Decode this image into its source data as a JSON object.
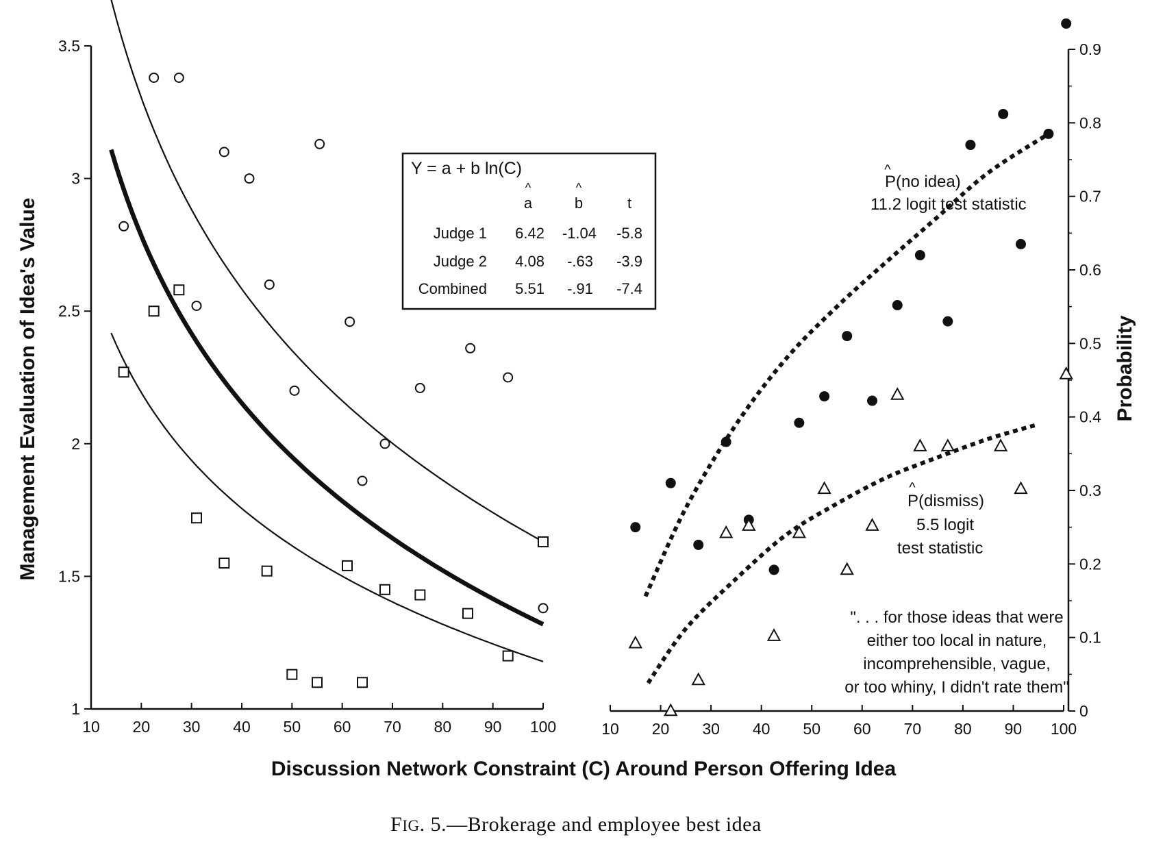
{
  "caption": {
    "prefix": "F",
    "smallcaps": "IG",
    "rest": ". 5.—Brokerage and employee best idea"
  },
  "chart_data": [
    {
      "type": "scatter",
      "panel": "left",
      "title": "",
      "xlabel": "Discussion Network Constraint (C) Around Person Offering Idea",
      "ylabel": "Management Evaluation of Idea's Value",
      "xlim": [
        10,
        100
      ],
      "ylim": [
        1,
        3.5
      ],
      "xticks": [
        "10",
        "20",
        "30",
        "40",
        "50",
        "60",
        "70",
        "80",
        "90",
        "100"
      ],
      "yticks": [
        "1",
        "1.5",
        "2",
        "2.5",
        "3",
        "3.5"
      ],
      "grid": false,
      "series": [
        {
          "marker": "circle",
          "points": [
            [
              16.5,
              2.82
            ],
            [
              22.5,
              3.38
            ],
            [
              27.5,
              3.38
            ],
            [
              31,
              2.52
            ],
            [
              36.5,
              3.1
            ],
            [
              41.5,
              3.0
            ],
            [
              45.5,
              2.6
            ],
            [
              50.5,
              2.2
            ],
            [
              55.5,
              3.13
            ],
            [
              61.5,
              2.46
            ],
            [
              64,
              1.86
            ],
            [
              68.5,
              2.0
            ],
            [
              75.5,
              2.21
            ],
            [
              85.5,
              2.36
            ],
            [
              93,
              2.25
            ],
            [
              100,
              1.38
            ]
          ]
        },
        {
          "marker": "square",
          "points": [
            [
              16.5,
              2.27
            ],
            [
              22.5,
              2.5
            ],
            [
              27.5,
              2.58
            ],
            [
              31,
              1.72
            ],
            [
              36.5,
              1.55
            ],
            [
              45,
              1.52
            ],
            [
              50,
              1.13
            ],
            [
              55,
              1.1
            ],
            [
              61,
              1.54
            ],
            [
              64,
              1.1
            ],
            [
              68.5,
              1.45
            ],
            [
              75.5,
              1.43
            ],
            [
              85,
              1.36
            ],
            [
              93,
              1.2
            ],
            [
              100,
              1.63
            ]
          ]
        }
      ],
      "fit_lines": [
        {
          "a": 6.42,
          "b": -1.04,
          "x_from": 14,
          "x_to": 100,
          "weight": "thin"
        },
        {
          "a": 5.51,
          "b": -0.91,
          "x_from": 14,
          "x_to": 100,
          "weight": "bold"
        },
        {
          "a": 4.08,
          "b": -0.63,
          "x_from": 14,
          "x_to": 100,
          "weight": "thin"
        }
      ],
      "table": {
        "equation": "Y = a + b ln(C)",
        "headers": [
          "a",
          "b",
          "t"
        ],
        "hat": "^",
        "rows": [
          {
            "label": "Judge 1",
            "a": "6.42",
            "b": "-1.04",
            "t": "-5.8"
          },
          {
            "label": "Judge 2",
            "a": "4.08",
            "b": "-.63",
            "t": "-3.9"
          },
          {
            "label": "Combined",
            "a": "5.51",
            "b": "-.91",
            "t": "-7.4"
          }
        ]
      }
    },
    {
      "type": "scatter",
      "panel": "right",
      "title": "",
      "xlabel": "Discussion Network Constraint (C) Around Person Offering Idea",
      "ylabel": "Probability",
      "xlim": [
        10,
        100
      ],
      "ylim": [
        0,
        0.9
      ],
      "xticks": [
        "10",
        "20",
        "30",
        "40",
        "50",
        "60",
        "70",
        "80",
        "90",
        "100"
      ],
      "yticks": [
        "0",
        "0.1",
        "0.2",
        "0.3",
        "0.4",
        "0.5",
        "0.6",
        "0.7",
        "0.8",
        "0.9"
      ],
      "grid": false,
      "series": [
        {
          "marker": "filled-circle",
          "points": [
            [
              15,
              0.25
            ],
            [
              22,
              0.31
            ],
            [
              27.5,
              0.226
            ],
            [
              33,
              0.366
            ],
            [
              37.5,
              0.26
            ],
            [
              42.5,
              0.192
            ],
            [
              47.5,
              0.392
            ],
            [
              52.5,
              0.428
            ],
            [
              57,
              0.51
            ],
            [
              62,
              0.422
            ],
            [
              67,
              0.552
            ],
            [
              71.5,
              0.62
            ],
            [
              77,
              0.53
            ],
            [
              81.5,
              0.77
            ],
            [
              88,
              0.812
            ],
            [
              91.5,
              0.635
            ],
            [
              97,
              0.785
            ],
            [
              100.5,
              0.935
            ]
          ]
        },
        {
          "marker": "triangle",
          "points": [
            [
              15,
              0.092
            ],
            [
              22,
              0
            ],
            [
              27.5,
              0.042
            ],
            [
              33,
              0.242
            ],
            [
              37.5,
              0.252
            ],
            [
              42.5,
              0.102
            ],
            [
              47.5,
              0.242
            ],
            [
              52.5,
              0.302
            ],
            [
              57,
              0.192
            ],
            [
              62,
              0.252
            ],
            [
              67,
              0.43
            ],
            [
              71.5,
              0.36
            ],
            [
              77,
              0.36
            ],
            [
              87.5,
              0.36
            ],
            [
              91.5,
              0.302
            ],
            [
              100.5,
              0.458
            ]
          ]
        }
      ],
      "fit_lines": [
        {
          "label_main": "P(no idea)",
          "label_sub": "11.2 logit test statistic",
          "points": [
            [
              17,
              0.156
            ],
            [
              25,
              0.276
            ],
            [
              35,
              0.39
            ],
            [
              45,
              0.48
            ],
            [
              55,
              0.55
            ],
            [
              65,
              0.612
            ],
            [
              75,
              0.672
            ],
            [
              85,
              0.732
            ],
            [
              97,
              0.785
            ]
          ]
        },
        {
          "label_main": "P(dismiss)",
          "label_sub_1": "5.5 logit",
          "label_sub_2": "test statistic",
          "points": [
            [
              17.5,
              0.038
            ],
            [
              25,
              0.112
            ],
            [
              35,
              0.18
            ],
            [
              45,
              0.24
            ],
            [
              55,
              0.282
            ],
            [
              65,
              0.318
            ],
            [
              75,
              0.345
            ],
            [
              85,
              0.37
            ],
            [
              95,
              0.39
            ]
          ]
        }
      ],
      "annotation": [
        "\". . . for those ideas that were",
        "either too local in nature,",
        "incomprehensible, vague,",
        "or too whiny, I didn't rate them\""
      ]
    }
  ]
}
